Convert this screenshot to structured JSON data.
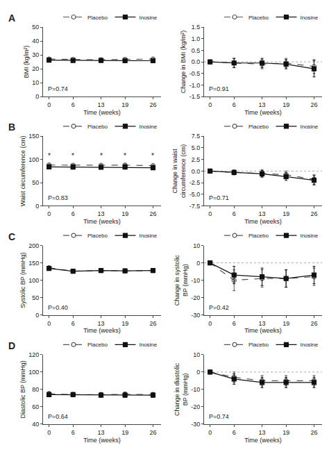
{
  "chart_data": [
    {
      "type": "line",
      "title": "A",
      "xlabel": "Time (weeks)",
      "ylabel": "BMI (kg/m²)",
      "x": [
        0,
        6,
        13,
        19,
        26
      ],
      "xlim": [
        -1.5,
        28
      ],
      "xticks": [
        0,
        6,
        13,
        19,
        26
      ],
      "ylim": [
        0,
        50
      ],
      "yticks": [
        0,
        10,
        20,
        30,
        40,
        50
      ],
      "grid": false,
      "legend": "top right",
      "annotations": [
        {
          "text": "P=0.74"
        }
      ],
      "series": [
        {
          "name": "Placebo",
          "color": "#555555",
          "marker": "open circle",
          "line_style": "dashed",
          "values": [
            27.0,
            26.8,
            26.5,
            26.8,
            27.0
          ],
          "errors": [
            0.5,
            0.5,
            0.5,
            0.5,
            0.5
          ]
        },
        {
          "name": "Inosine",
          "color": "#111111",
          "marker": "square",
          "line_style": "solid",
          "values": [
            26.2,
            26.0,
            26.0,
            25.9,
            25.8
          ],
          "errors": [
            0.5,
            0.5,
            0.5,
            0.5,
            0.5
          ]
        }
      ]
    },
    {
      "type": "line",
      "xlabel": "Time (weeks)",
      "ylabel": "Change in BMI (kg/m²)",
      "x": [
        0,
        6,
        13,
        19,
        26
      ],
      "xlim": [
        -1.5,
        28
      ],
      "xticks": [
        0,
        6,
        13,
        19,
        26
      ],
      "ylim": [
        -1.5,
        1.5
      ],
      "yticks": [
        -1.5,
        {
          "value": -1.0,
          "label": "-1.0"
        },
        -0.5,
        {
          "value": 0.0,
          "label": "0.0"
        },
        0.5,
        {
          "value": 1.0,
          "label": "1.0"
        },
        1.5
      ],
      "grid": false,
      "legend": "top right",
      "reference_lines": [
        {
          "y": 0,
          "color": "#aaaaaa",
          "line_style": "dotted"
        }
      ],
      "annotations": [
        {
          "text": "P=0.91"
        }
      ],
      "series": [
        {
          "name": "Placebo",
          "color": "#555555",
          "marker": "open circle",
          "line_style": "dashed",
          "values": [
            0.0,
            -0.05,
            -0.1,
            -0.05,
            -0.2
          ],
          "errors": [
            0.0,
            0.2,
            0.2,
            0.2,
            0.3
          ]
        },
        {
          "name": "Inosine",
          "color": "#111111",
          "marker": "square",
          "line_style": "solid",
          "values": [
            0.0,
            -0.05,
            -0.05,
            -0.1,
            -0.3
          ],
          "errors": [
            0.0,
            0.2,
            0.2,
            0.2,
            0.35
          ]
        }
      ]
    },
    {
      "type": "line",
      "title": "B",
      "xlabel": "Time (weeks)",
      "ylabel": "Waist circumference (cm)",
      "x": [
        0,
        6,
        13,
        19,
        26
      ],
      "xlim": [
        -1.5,
        28
      ],
      "xticks": [
        0,
        6,
        13,
        19,
        26
      ],
      "ylim": [
        0,
        150
      ],
      "yticks": [
        0,
        50,
        100,
        150
      ],
      "grid": false,
      "legend": "top right",
      "annotations": [
        {
          "text": "P=0.83"
        },
        {
          "text": "*",
          "x": 0,
          "y": 97.0
        },
        {
          "text": "*",
          "x": 6,
          "y": 97.0
        },
        {
          "text": "*",
          "x": 13,
          "y": 97.0
        },
        {
          "text": "*",
          "x": 19,
          "y": 97.0
        },
        {
          "text": "*",
          "x": 26,
          "y": 97.0
        }
      ],
      "series": [
        {
          "name": "Placebo",
          "color": "#555555",
          "marker": "open circle",
          "line_style": "dashed",
          "values": [
            88.0,
            87.5,
            87.5,
            87.8,
            86.5
          ],
          "errors": [
            2.0,
            2.0,
            2.0,
            2.0,
            2.0
          ]
        },
        {
          "name": "Inosine",
          "color": "#111111",
          "marker": "square",
          "line_style": "solid",
          "values": [
            84.0,
            83.5,
            83.0,
            83.5,
            82.0
          ],
          "errors": [
            2.0,
            2.0,
            2.0,
            2.0,
            2.0
          ]
        }
      ]
    },
    {
      "type": "line",
      "xlabel": "Time (weeks)",
      "ylabel": "Change in waist\ncircumference (cm)",
      "x": [
        0,
        6,
        13,
        19,
        26
      ],
      "xlim": [
        -1.5,
        28
      ],
      "xticks": [
        0,
        6,
        13,
        19,
        26
      ],
      "ylim": [
        -7.5,
        7.5
      ],
      "yticks": [
        -7.5,
        {
          "value": -5.0,
          "label": "-5.0"
        },
        -2.5,
        {
          "value": 0.0,
          "label": "0.0"
        },
        2.5,
        {
          "value": 5.0,
          "label": "5.0"
        },
        7.5
      ],
      "grid": false,
      "legend": "top right",
      "reference_lines": [
        {
          "y": 0,
          "color": "#aaaaaa",
          "line_style": "dotted"
        }
      ],
      "annotations": [
        {
          "text": "P=0.71"
        }
      ],
      "series": [
        {
          "name": "Placebo",
          "color": "#555555",
          "marker": "open circle",
          "line_style": "dashed",
          "values": [
            0.0,
            -0.3,
            -0.5,
            -0.8,
            -1.8
          ],
          "errors": [
            0.0,
            0.5,
            0.8,
            0.8,
            1.0
          ]
        },
        {
          "name": "Inosine",
          "color": "#111111",
          "marker": "square",
          "line_style": "solid",
          "values": [
            0.0,
            -0.3,
            -0.6,
            -1.2,
            -2.0
          ],
          "errors": [
            0.0,
            0.5,
            0.7,
            0.8,
            1.0
          ]
        }
      ]
    },
    {
      "type": "line",
      "title": "C",
      "xlabel": "Time (weeks)",
      "ylabel": "Systolic BP (mmHg)",
      "x": [
        0,
        6,
        13,
        19,
        26
      ],
      "xlim": [
        -1.5,
        28
      ],
      "xticks": [
        0,
        6,
        13,
        19,
        26
      ],
      "ylim": [
        0,
        200
      ],
      "yticks": [
        0,
        50,
        100,
        150,
        200
      ],
      "grid": false,
      "legend": "top right",
      "annotations": [
        {
          "text": "P=0.40"
        }
      ],
      "series": [
        {
          "name": "Placebo",
          "color": "#555555",
          "marker": "open circle",
          "line_style": "dashed",
          "values": [
            136.0,
            126.0,
            128.0,
            127.0,
            128.0
          ],
          "errors": [
            3.0,
            3.0,
            3.0,
            3.0,
            3.0
          ]
        },
        {
          "name": "Inosine",
          "color": "#111111",
          "marker": "square",
          "line_style": "solid",
          "values": [
            134.0,
            126.0,
            128.0,
            127.0,
            128.0
          ],
          "errors": [
            3.0,
            3.0,
            3.0,
            3.0,
            3.0
          ]
        }
      ]
    },
    {
      "type": "line",
      "xlabel": "Time (weeks)",
      "ylabel": "Change in systolic\nBP (mmHg)",
      "x": [
        0,
        6,
        13,
        19,
        26
      ],
      "xlim": [
        -1.5,
        28
      ],
      "xticks": [
        0,
        6,
        13,
        19,
        26
      ],
      "ylim": [
        -30,
        10
      ],
      "yticks": [
        -30,
        -20,
        -10,
        0,
        10
      ],
      "grid": false,
      "legend": "top right",
      "reference_lines": [
        {
          "y": 0,
          "color": "#aaaaaa",
          "line_style": "dotted"
        }
      ],
      "annotations": [
        {
          "text": "P=0.42"
        }
      ],
      "series": [
        {
          "name": "Placebo",
          "color": "#555555",
          "marker": "open circle",
          "line_style": "dashed",
          "values": [
            0.0,
            -10.0,
            -9.0,
            -9.0,
            -8.0
          ],
          "errors": [
            0.0,
            6.0,
            5.0,
            5.0,
            5.0
          ]
        },
        {
          "name": "Inosine",
          "color": "#111111",
          "marker": "square",
          "line_style": "solid",
          "values": [
            0.0,
            -7.0,
            -8.0,
            -9.0,
            -7.0
          ],
          "errors": [
            0.0,
            5.0,
            5.0,
            5.0,
            5.0
          ]
        }
      ]
    },
    {
      "type": "line",
      "title": "D",
      "xlabel": "Time (weeks)",
      "ylabel": "Diastolic BP (mmHg)",
      "x": [
        0,
        6,
        13,
        19,
        26
      ],
      "xlim": [
        -1.5,
        28
      ],
      "xticks": [
        0,
        6,
        13,
        19,
        26
      ],
      "ylim": [
        40,
        120
      ],
      "yticks": [
        40,
        60,
        80,
        100,
        120
      ],
      "grid": false,
      "legend": "top right",
      "annotations": [
        {
          "text": "P=0.64"
        }
      ],
      "series": [
        {
          "name": "Placebo",
          "color": "#555555",
          "marker": "open circle",
          "line_style": "dashed",
          "values": [
            75.0,
            74.0,
            74.0,
            74.5,
            74.0
          ],
          "errors": [
            2.5,
            2.5,
            2.5,
            2.5,
            2.5
          ]
        },
        {
          "name": "Inosine",
          "color": "#111111",
          "marker": "square",
          "line_style": "solid",
          "values": [
            74.0,
            74.0,
            73.5,
            73.5,
            73.5
          ],
          "errors": [
            2.5,
            2.5,
            2.5,
            2.5,
            2.5
          ]
        }
      ]
    },
    {
      "type": "line",
      "xlabel": "Time (weeks)",
      "ylabel": "Change in diastolic\nBP (mmHg)",
      "x": [
        0,
        6,
        13,
        19,
        26
      ],
      "xlim": [
        -1.5,
        28
      ],
      "xticks": [
        0,
        6,
        13,
        19,
        26
      ],
      "ylim": [
        -30,
        10
      ],
      "yticks": [
        -30,
        -20,
        -10,
        0,
        10
      ],
      "grid": false,
      "legend": "top right",
      "reference_lines": [
        {
          "y": 0,
          "color": "#aaaaaa",
          "line_style": "dotted"
        }
      ],
      "annotations": [
        {
          "text": "P=0.74"
        }
      ],
      "series": [
        {
          "name": "Placebo",
          "color": "#555555",
          "marker": "open circle",
          "line_style": "dashed",
          "values": [
            0.0,
            -3.0,
            -5.0,
            -5.0,
            -5.0
          ],
          "errors": [
            0.0,
            3.0,
            3.0,
            3.0,
            3.0
          ]
        },
        {
          "name": "Inosine",
          "color": "#111111",
          "marker": "square",
          "line_style": "solid",
          "values": [
            0.0,
            -4.0,
            -6.0,
            -6.0,
            -6.0
          ],
          "errors": [
            0.0,
            3.0,
            3.0,
            3.0,
            3.0
          ]
        }
      ]
    }
  ]
}
